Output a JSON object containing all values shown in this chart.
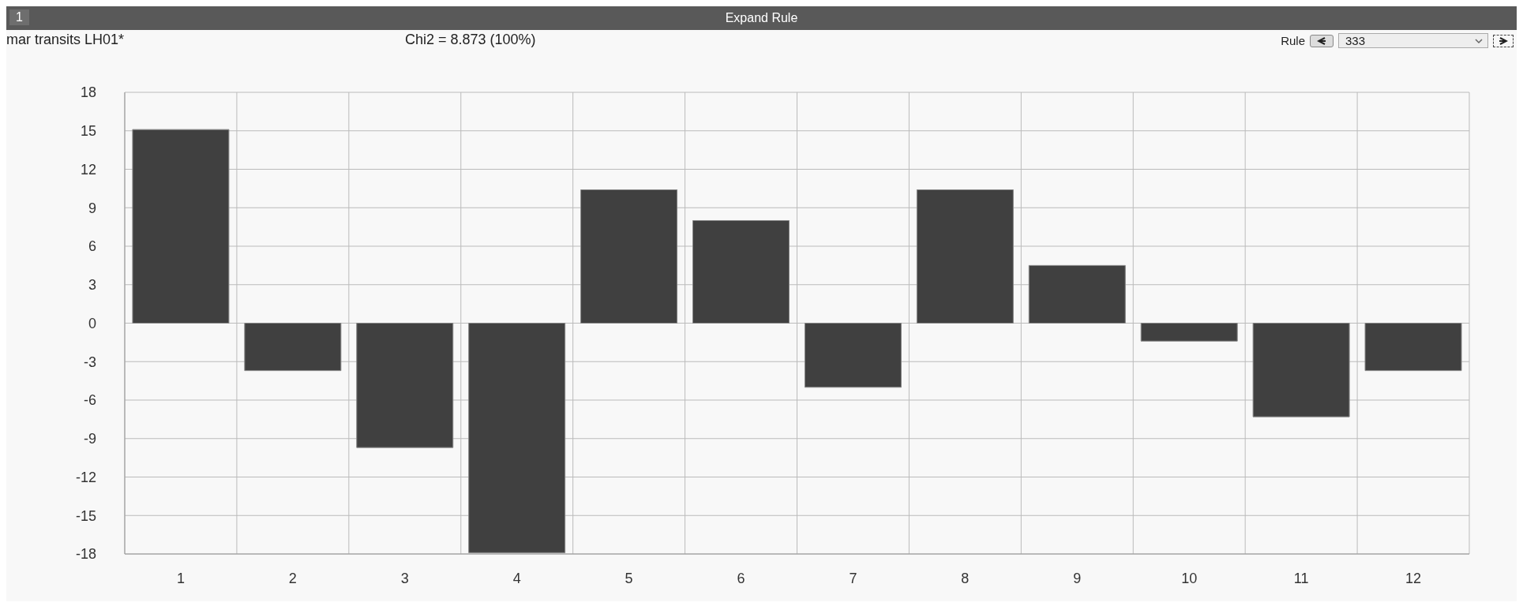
{
  "chart_data": {
    "type": "bar",
    "title": "Expand Rule",
    "subtitle": "mar transits LH01*",
    "annotations": [
      "1",
      "Chi2 = 8.873 (100%)",
      "Rule",
      "333"
    ],
    "categories": [
      "1",
      "2",
      "3",
      "4",
      "5",
      "6",
      "7",
      "8",
      "9",
      "10",
      "11",
      "12"
    ],
    "values": [
      15.1,
      -3.7,
      -9.7,
      -17.9,
      10.4,
      8.0,
      -5.0,
      10.4,
      4.5,
      -1.4,
      -7.3,
      -3.7
    ],
    "color": "#404040",
    "ylim": [
      -18,
      18
    ],
    "yticks": [
      -18,
      -15,
      -12,
      -9,
      -6,
      -3,
      0,
      3,
      6,
      9,
      12,
      15,
      18
    ],
    "grid": true
  }
}
